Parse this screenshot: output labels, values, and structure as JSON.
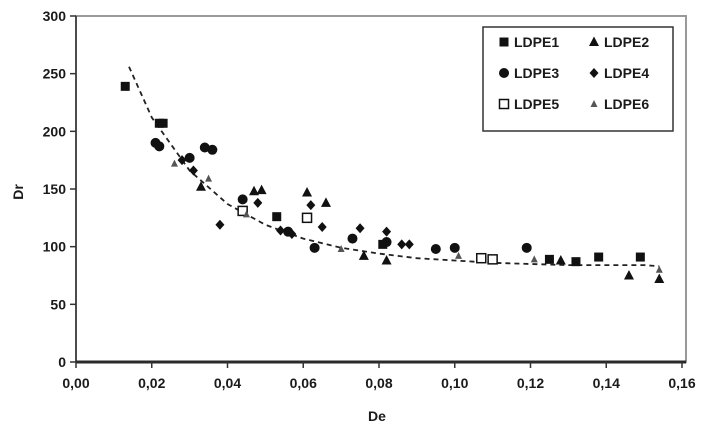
{
  "chart_data": {
    "type": "scatter",
    "title": "",
    "xlabel": "De",
    "ylabel": "Dr",
    "xlim": [
      0,
      0.16
    ],
    "ylim": [
      0,
      300
    ],
    "x_ticks": [
      "0,00",
      "0,02",
      "0,04",
      "0,06",
      "0,08",
      "0,10",
      "0,12",
      "0,14",
      "0,16"
    ],
    "y_ticks": [
      "0",
      "50",
      "100",
      "150",
      "200",
      "250",
      "300"
    ],
    "grid": false,
    "legend_position": "top-right",
    "legend_layout": "3 rows x 2 columns",
    "series": [
      {
        "name": "LDPE1",
        "marker": "filled-square",
        "points": [
          [
            0.013,
            239
          ],
          [
            0.022,
            207
          ],
          [
            0.023,
            207
          ],
          [
            0.053,
            126
          ],
          [
            0.081,
            102
          ],
          [
            0.125,
            89
          ],
          [
            0.132,
            87
          ],
          [
            0.138,
            91
          ],
          [
            0.149,
            91
          ]
        ]
      },
      {
        "name": "LDPE2",
        "marker": "filled-triangle",
        "points": [
          [
            0.033,
            152
          ],
          [
            0.047,
            148
          ],
          [
            0.049,
            149
          ],
          [
            0.061,
            147
          ],
          [
            0.066,
            138
          ],
          [
            0.076,
            92
          ],
          [
            0.082,
            88
          ],
          [
            0.128,
            88
          ],
          [
            0.146,
            75
          ],
          [
            0.154,
            72
          ]
        ]
      },
      {
        "name": "LDPE3",
        "marker": "filled-circle",
        "points": [
          [
            0.021,
            190
          ],
          [
            0.022,
            187
          ],
          [
            0.03,
            177
          ],
          [
            0.034,
            186
          ],
          [
            0.036,
            184
          ],
          [
            0.044,
            141
          ],
          [
            0.056,
            113
          ],
          [
            0.063,
            99
          ],
          [
            0.073,
            107
          ],
          [
            0.082,
            104
          ],
          [
            0.095,
            98
          ],
          [
            0.1,
            99
          ],
          [
            0.119,
            99
          ]
        ]
      },
      {
        "name": "LDPE4",
        "marker": "filled-diamond",
        "points": [
          [
            0.028,
            175
          ],
          [
            0.031,
            166
          ],
          [
            0.038,
            119
          ],
          [
            0.048,
            138
          ],
          [
            0.054,
            114
          ],
          [
            0.057,
            111
          ],
          [
            0.062,
            136
          ],
          [
            0.065,
            117
          ],
          [
            0.075,
            116
          ],
          [
            0.082,
            113
          ],
          [
            0.086,
            102
          ],
          [
            0.088,
            102
          ]
        ]
      },
      {
        "name": "LDPE5",
        "marker": "hollow-square",
        "points": [
          [
            0.044,
            131
          ],
          [
            0.061,
            125
          ],
          [
            0.107,
            90
          ],
          [
            0.11,
            89
          ]
        ]
      },
      {
        "name": "LDPE6",
        "marker": "small-triangle",
        "points": [
          [
            0.026,
            172
          ],
          [
            0.035,
            159
          ],
          [
            0.045,
            128
          ],
          [
            0.07,
            98
          ],
          [
            0.101,
            92
          ],
          [
            0.121,
            89
          ],
          [
            0.154,
            80
          ]
        ]
      }
    ],
    "trendline": {
      "style": "dashed",
      "points": [
        [
          0.014,
          256
        ],
        [
          0.02,
          212
        ],
        [
          0.03,
          166
        ],
        [
          0.04,
          137
        ],
        [
          0.05,
          119
        ],
        [
          0.06,
          107
        ],
        [
          0.07,
          99
        ],
        [
          0.08,
          94
        ],
        [
          0.09,
          90
        ],
        [
          0.1,
          88
        ],
        [
          0.11,
          86
        ],
        [
          0.12,
          85
        ],
        [
          0.13,
          84
        ],
        [
          0.14,
          84
        ],
        [
          0.15,
          84
        ],
        [
          0.154,
          83
        ]
      ]
    }
  },
  "colors": {
    "marker": "#111111",
    "axis": "#333333",
    "plot_border": "#999999",
    "baseline": "#2a2a2a"
  }
}
